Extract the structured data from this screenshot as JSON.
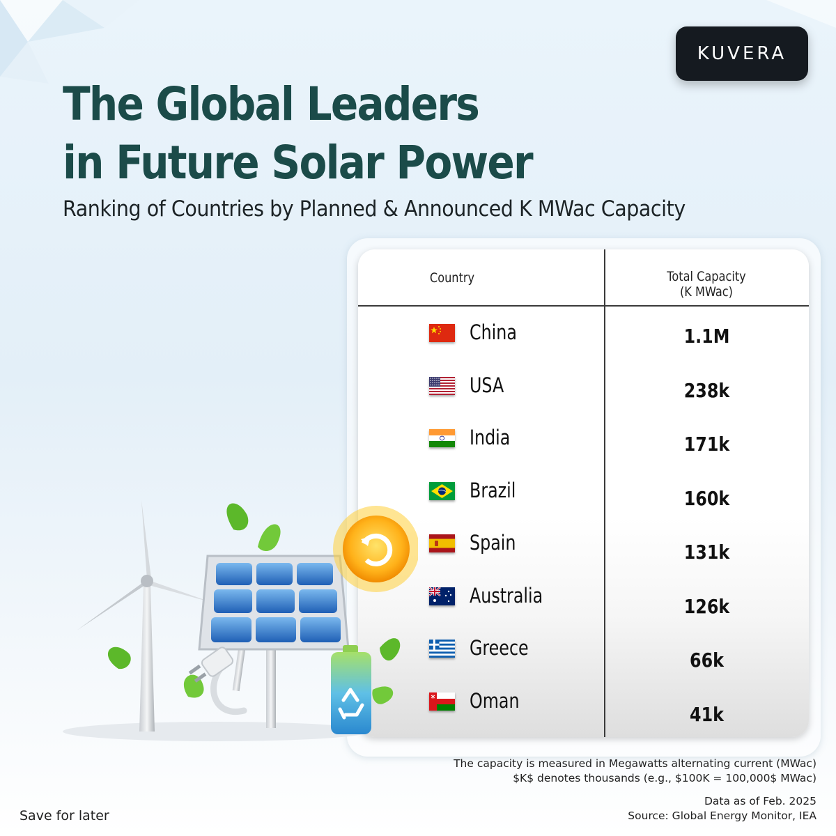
{
  "brand": {
    "logo_text": "KUVERA"
  },
  "header": {
    "title_line1": "The Global Leaders",
    "title_line2": "in Future Solar Power",
    "subtitle": "Ranking of Countries by Planned & Announced K MWac Capacity"
  },
  "table": {
    "col_country": "Country",
    "col_capacity_line1": "Total Capacity",
    "col_capacity_line2": "(K MWac)"
  },
  "chart_data": {
    "type": "table",
    "title": "The Global Leaders in Future Solar Power",
    "subtitle": "Ranking of Countries by Planned & Announced K MWac Capacity",
    "columns": [
      "Country",
      "Total Capacity (K MWac)"
    ],
    "rows": [
      {
        "country": "China",
        "capacity": "1.1M",
        "flag": "china-flag-icon"
      },
      {
        "country": "USA",
        "capacity": "238k",
        "flag": "usa-flag-icon"
      },
      {
        "country": "India",
        "capacity": "171k",
        "flag": "india-flag-icon"
      },
      {
        "country": "Brazil",
        "capacity": "160k",
        "flag": "brazil-flag-icon"
      },
      {
        "country": "Spain",
        "capacity": "131k",
        "flag": "spain-flag-icon"
      },
      {
        "country": "Australia",
        "capacity": "126k",
        "flag": "australia-flag-icon"
      },
      {
        "country": "Greece",
        "capacity": "66k",
        "flag": "greece-flag-icon"
      },
      {
        "country": "Oman",
        "capacity": "41k",
        "flag": "oman-flag-icon"
      }
    ]
  },
  "footnote": {
    "line1": "The capacity is measured in Megawatts alternating current (MWac)",
    "line2": "$K$ denotes thousands (e.g., $100K = 100,000$ MWac)",
    "line3": "Data as of Feb. 2025",
    "line4": "Source: Global Energy Monitor, IEA"
  },
  "actions": {
    "save_label": "Save for later"
  },
  "colors": {
    "title": "#1b4b49",
    "logo_bg": "#151a20",
    "logo_accent": "#2aa3d8"
  }
}
